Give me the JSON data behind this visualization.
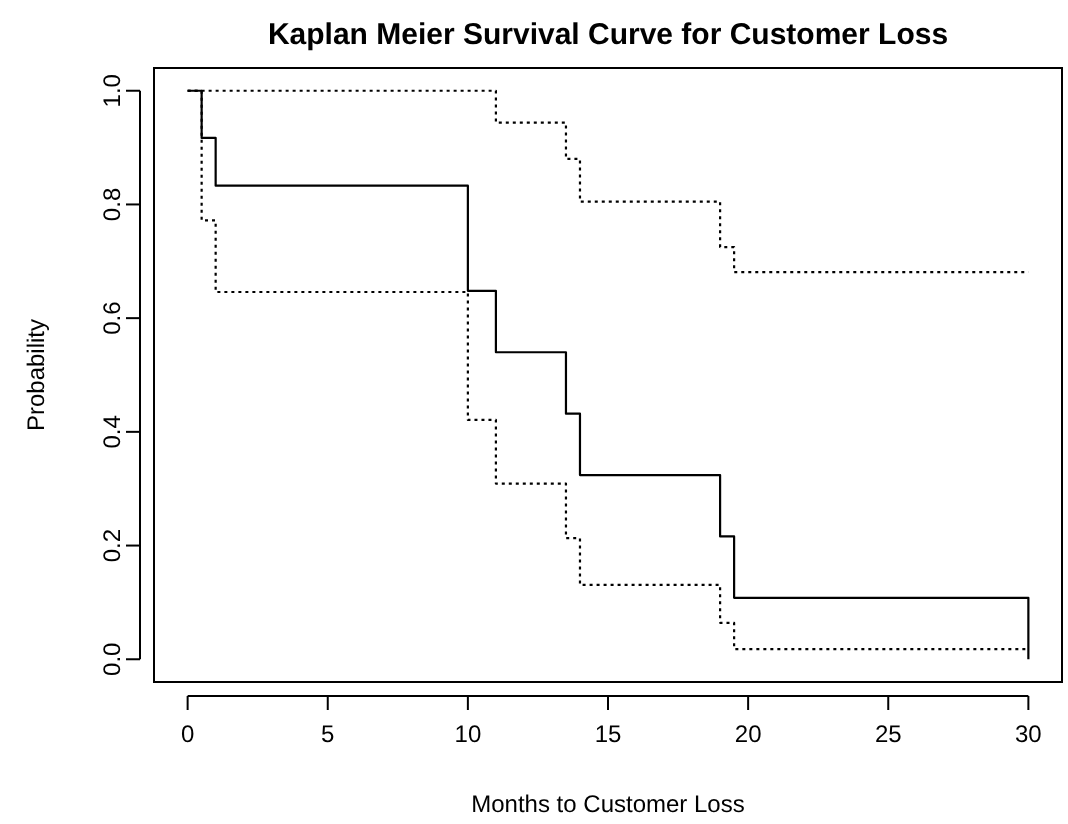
{
  "chart_data": {
    "type": "step",
    "title": "Kaplan Meier Survival Curve for Customer Loss",
    "xlabel": "Months to Customer Loss",
    "ylabel": "Probability",
    "xlim": [
      -1.2,
      31.2
    ],
    "xticks": [
      0,
      5,
      10,
      15,
      20,
      25,
      30
    ],
    "ylim": [
      -0.04,
      1.04
    ],
    "yticks": [
      {
        "value": 0,
        "label": "0.0"
      },
      {
        "value": 0.2,
        "label": "0.2"
      },
      {
        "value": 0.4,
        "label": "0.4"
      },
      {
        "value": 0.6,
        "label": "0.6"
      },
      {
        "value": 0.8,
        "label": "0.8"
      },
      {
        "value": 1,
        "label": "1.0"
      }
    ],
    "grid": false,
    "series": [
      {
        "color": "#000000",
        "line_style": "solid",
        "x": [
          0,
          0.5,
          1,
          10,
          11,
          13.5,
          14,
          19,
          19.5,
          30
        ],
        "values": [
          1,
          0.917,
          0.833,
          0.648,
          0.54,
          0.432,
          0.324,
          0.216,
          0.108,
          0
        ]
      },
      {
        "color": "#000000",
        "line_style": "dotted",
        "x": [
          0,
          11,
          13.5,
          14,
          19,
          19.5,
          30
        ],
        "values": [
          1,
          0.944,
          0.88,
          0.805,
          0.725,
          0.681,
          0.681
        ]
      },
      {
        "color": "#000000",
        "line_style": "dotted",
        "x": [
          0,
          0.5,
          1,
          10,
          11,
          13.5,
          14,
          19,
          19.5,
          30
        ],
        "values": [
          1,
          0.772,
          0.646,
          0.421,
          0.309,
          0.213,
          0.131,
          0.064,
          0.018,
          0.018
        ]
      }
    ]
  }
}
